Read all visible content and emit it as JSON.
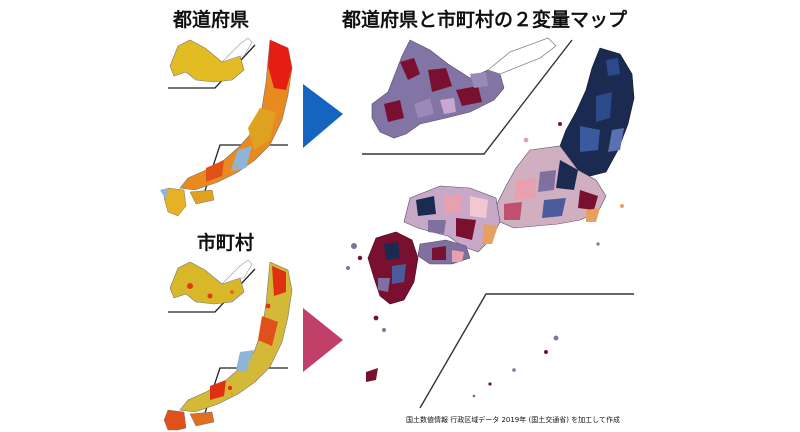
{
  "titles": {
    "prefecture": "都道府県",
    "municipality": "市町村",
    "bivariate": "都道府県と市町村の２変量マップ"
  },
  "credit": "国土数値情報 行政区域データ 2019年 (国土交通省) を加工して作成",
  "colors": {
    "arrow_top": "#1565c0",
    "arrow_bottom": "#c0406a",
    "choropleth_low": "#e8c028",
    "choropleth_mid": "#e07820",
    "choropleth_high": "#e82010",
    "bivariate_dark_blue": "#1a2a50",
    "bivariate_purple": "#8070a0",
    "bivariate_maroon": "#7a1030",
    "bivariate_pink": "#e8a0b0"
  },
  "icons": [
    "arrow-right-icon-blue",
    "arrow-right-icon-pink"
  ]
}
